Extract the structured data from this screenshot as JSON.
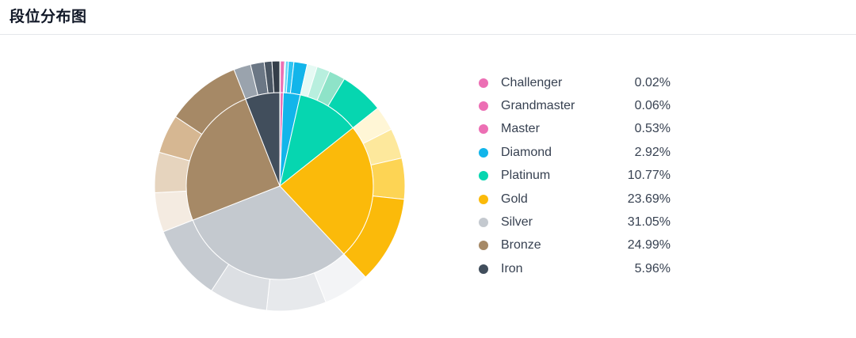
{
  "header": {
    "title": "段位分布图"
  },
  "chart_data": {
    "type": "pie",
    "variant": "nested-donut",
    "title": "段位分布图",
    "legend_position": "right",
    "series": [
      {
        "name": "Challenger",
        "value": 0.02,
        "display": "0.02%",
        "color": "#ec6fb4"
      },
      {
        "name": "Grandmaster",
        "value": 0.06,
        "display": "0.06%",
        "color": "#ec6fb4"
      },
      {
        "name": "Master",
        "value": 0.53,
        "display": "0.53%",
        "color": "#ec6fb4"
      },
      {
        "name": "Diamond",
        "value": 2.92,
        "display": "2.92%",
        "color": "#12b5ea"
      },
      {
        "name": "Platinum",
        "value": 10.77,
        "display": "10.77%",
        "color": "#06d6b0"
      },
      {
        "name": "Gold",
        "value": 23.69,
        "display": "23.69%",
        "color": "#fbba0a"
      },
      {
        "name": "Silver",
        "value": 31.05,
        "display": "31.05%",
        "color": "#c4c9cf"
      },
      {
        "name": "Bronze",
        "value": 24.99,
        "display": "24.99%",
        "color": "#a68966"
      },
      {
        "name": "Iron",
        "value": 5.96,
        "display": "5.96%",
        "color": "#414e5c"
      }
    ],
    "outer_ring": [
      {
        "tier": "Challenger",
        "value": 0.02,
        "color": "#ec6fb4"
      },
      {
        "tier": "Grandmaster",
        "value": 0.06,
        "color": "#ec6fb4"
      },
      {
        "tier": "Master",
        "value": 0.53,
        "color": "#ec6fb4"
      },
      {
        "tier": "Diamond",
        "value": 0.15,
        "color": "#87e3fb"
      },
      {
        "tier": "Diamond",
        "value": 0.35,
        "color": "#5dd6f8"
      },
      {
        "tier": "Diamond",
        "value": 0.7,
        "color": "#2ec4f2"
      },
      {
        "tier": "Diamond",
        "value": 1.72,
        "color": "#12b5ea"
      },
      {
        "tier": "Platinum",
        "value": 1.3,
        "color": "#e6faf4"
      },
      {
        "tier": "Platinum",
        "value": 1.7,
        "color": "#b8efde"
      },
      {
        "tier": "Platinum",
        "value": 2.1,
        "color": "#8ee3c8"
      },
      {
        "tier": "Platinum",
        "value": 5.67,
        "color": "#06d6b0"
      },
      {
        "tier": "Gold",
        "value": 3.2,
        "color": "#fff6d6"
      },
      {
        "tier": "Gold",
        "value": 3.9,
        "color": "#fde89c"
      },
      {
        "tier": "Gold",
        "value": 5.3,
        "color": "#fdd454"
      },
      {
        "tier": "Gold",
        "value": 11.29,
        "color": "#fbba0a"
      },
      {
        "tier": "Silver",
        "value": 6.0,
        "color": "#f3f4f6"
      },
      {
        "tier": "Silver",
        "value": 7.7,
        "color": "#e7e9ec"
      },
      {
        "tier": "Silver",
        "value": 7.5,
        "color": "#dcdfe3"
      },
      {
        "tier": "Silver",
        "value": 9.85,
        "color": "#c6cbd1"
      },
      {
        "tier": "Bronze",
        "value": 5.1,
        "color": "#f4ebe1"
      },
      {
        "tier": "Bronze",
        "value": 5.2,
        "color": "#e6d4be"
      },
      {
        "tier": "Bronze",
        "value": 5.0,
        "color": "#d6b792"
      },
      {
        "tier": "Bronze",
        "value": 9.69,
        "color": "#a68966"
      },
      {
        "tier": "Iron",
        "value": 2.2,
        "color": "#9aa3ad"
      },
      {
        "tier": "Iron",
        "value": 1.76,
        "color": "#6b7785"
      },
      {
        "tier": "Iron",
        "value": 1.0,
        "color": "#4a5663"
      },
      {
        "tier": "Iron",
        "value": 1.0,
        "color": "#343e49"
      }
    ]
  }
}
